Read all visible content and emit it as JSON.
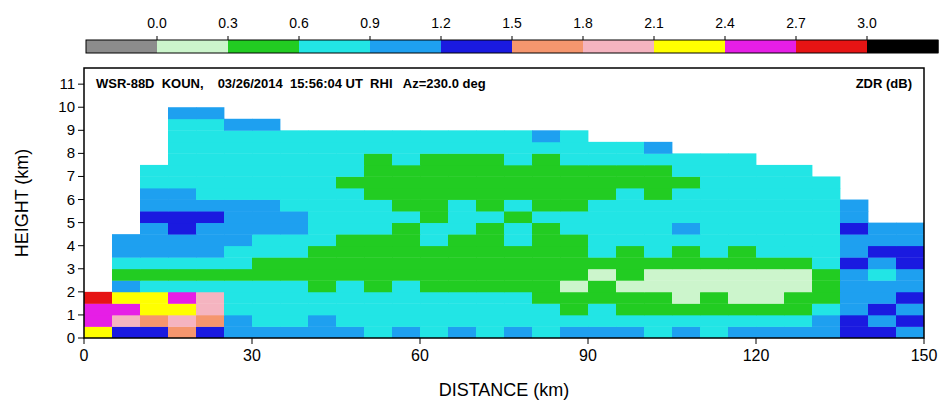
{
  "chart_data": {
    "type": "heatmap",
    "title": "WSR-88D  KOUN,",
    "subtitle": "03/26/2014  15:56:04 UT  RHI   Az=230.0 deg",
    "annotation": "ZDR (dB)",
    "x_label": "DISTANCE (km)",
    "y_label": "HEIGHT (km)",
    "xlim": [
      0,
      150
    ],
    "ylim": [
      0,
      11.7
    ],
    "xticks": [
      0,
      30,
      60,
      90,
      120,
      150
    ],
    "yticks": [
      0,
      1,
      2,
      3,
      4,
      5,
      6,
      7,
      8,
      9,
      10,
      11
    ],
    "grid": false,
    "xbins": [
      0,
      5,
      10,
      15,
      20,
      25,
      30,
      35,
      40,
      45,
      50,
      55,
      60,
      65,
      70,
      75,
      80,
      85,
      90,
      95,
      100,
      105,
      110,
      115,
      120,
      125,
      130,
      135,
      140,
      145,
      150
    ],
    "ybins": [
      0,
      0.5,
      1,
      1.5,
      2,
      2.5,
      3,
      3.5,
      4,
      4.5,
      5,
      5.5,
      6,
      6.5,
      7,
      7.5,
      8,
      8.5,
      9,
      9.5,
      10
    ],
    "cells": [
      [
        2.2,
        1.3,
        1.4,
        1.7,
        1.2,
        1.1,
        1.0,
        0.9,
        1.0,
        0.9,
        0.8,
        0.9,
        0.8,
        0.9,
        0.8,
        0.9,
        0.8,
        0.9,
        1.0,
        0.9,
        0.8,
        0.9,
        0.8,
        0.9,
        1.0,
        0.9,
        1.1,
        1.3,
        1.2,
        1.0
      ],
      [
        2.5,
        1.9,
        1.7,
        2.0,
        1.5,
        0.9,
        0.8,
        0.8,
        0.9,
        0.7,
        0.8,
        0.7,
        0.8,
        0.7,
        0.8,
        0.7,
        0.8,
        0.7,
        0.8,
        0.7,
        0.8,
        0.7,
        0.8,
        0.7,
        0.8,
        0.7,
        0.9,
        1.2,
        1.1,
        1.3
      ],
      [
        2.6,
        2.4,
        2.2,
        2.3,
        1.8,
        0.7,
        0.6,
        0.7,
        0.6,
        0.7,
        0.6,
        0.7,
        0.6,
        0.7,
        0.6,
        0.7,
        0.6,
        0.5,
        0.6,
        0.5,
        0.4,
        0.5,
        0.4,
        0.5,
        0.4,
        0.5,
        0.6,
        1.0,
        1.2,
        1.1
      ],
      [
        2.7,
        2.3,
        2.1,
        2.4,
        1.9,
        0.8,
        0.7,
        0.8,
        0.7,
        0.8,
        0.7,
        0.8,
        0.7,
        0.6,
        0.7,
        0.6,
        0.5,
        0.4,
        0.5,
        0.4,
        0.3,
        0.2,
        0.3,
        0.2,
        0.2,
        0.3,
        0.4,
        1.1,
        1.0,
        1.2
      ],
      [
        null,
        0.9,
        0.8,
        0.8,
        0.7,
        0.7,
        0.6,
        0.7,
        0.5,
        0.6,
        0.5,
        0.6,
        0.5,
        0.4,
        0.5,
        0.4,
        0.3,
        0.2,
        0.3,
        0.2,
        0.2,
        0.1,
        0.2,
        0.1,
        0.1,
        0.2,
        0.3,
        0.9,
        1.0,
        0.9
      ],
      [
        null,
        0.4,
        0.4,
        0.5,
        0.4,
        0.4,
        0.4,
        0.3,
        0.3,
        0.4,
        0.4,
        0.4,
        0.3,
        0.4,
        0.4,
        0.3,
        0.4,
        0.3,
        0.2,
        0.4,
        0.2,
        0.1,
        0.2,
        0.1,
        0.2,
        0.2,
        0.4,
        1.0,
        0.8,
        1.0
      ],
      [
        null,
        0.8,
        0.7,
        0.8,
        0.7,
        0.6,
        0.5,
        0.5,
        0.4,
        0.5,
        0.4,
        0.5,
        0.4,
        0.5,
        0.4,
        0.5,
        0.4,
        0.5,
        0.4,
        0.5,
        0.4,
        0.5,
        0.4,
        0.5,
        0.4,
        0.5,
        0.6,
        1.2,
        1.1,
        1.3
      ],
      [
        null,
        0.9,
        1.0,
        0.9,
        1.0,
        0.8,
        0.7,
        0.6,
        0.5,
        0.5,
        0.5,
        0.5,
        0.5,
        0.5,
        0.5,
        0.5,
        0.5,
        0.5,
        0.6,
        0.5,
        0.6,
        0.5,
        0.6,
        0.5,
        0.6,
        0.6,
        0.7,
        1.1,
        1.3,
        1.2
      ],
      [
        null,
        1.0,
        1.0,
        1.1,
        0.9,
        0.9,
        0.8,
        0.7,
        0.6,
        0.5,
        0.5,
        0.5,
        0.6,
        0.5,
        0.5,
        0.6,
        0.5,
        0.5,
        0.6,
        0.6,
        0.7,
        0.6,
        0.7,
        0.8,
        0.7,
        0.6,
        0.7,
        1.0,
        1.1,
        1.0
      ],
      [
        null,
        null,
        1.1,
        1.2,
        1.1,
        1.0,
        1.1,
        0.9,
        0.7,
        0.6,
        0.6,
        0.5,
        0.6,
        0.6,
        0.5,
        0.6,
        0.5,
        0.6,
        0.7,
        0.6,
        0.8,
        0.9,
        0.7,
        0.6,
        0.8,
        0.7,
        0.8,
        1.2,
        1.0,
        1.1
      ],
      [
        null,
        null,
        1.2,
        1.3,
        1.2,
        1.1,
        1.0,
        1.0,
        0.8,
        0.7,
        0.6,
        0.6,
        0.5,
        0.6,
        0.6,
        0.5,
        0.6,
        0.6,
        0.6,
        0.7,
        0.7,
        0.8,
        0.8,
        0.7,
        0.7,
        0.6,
        0.7,
        1.0,
        null,
        null
      ],
      [
        null,
        null,
        1.0,
        1.1,
        1.0,
        0.9,
        0.9,
        0.8,
        0.7,
        0.6,
        0.6,
        0.5,
        0.5,
        0.6,
        0.5,
        0.6,
        0.5,
        0.5,
        0.6,
        0.6,
        0.6,
        0.7,
        0.6,
        0.6,
        0.7,
        0.6,
        0.6,
        0.9,
        null,
        null
      ],
      [
        null,
        null,
        0.9,
        0.9,
        0.8,
        0.8,
        0.7,
        0.7,
        0.6,
        0.6,
        0.5,
        0.5,
        0.5,
        0.5,
        0.5,
        0.5,
        0.5,
        0.5,
        0.5,
        0.6,
        0.5,
        0.6,
        0.6,
        0.6,
        0.6,
        0.6,
        0.7,
        null,
        null,
        null
      ],
      [
        null,
        null,
        0.8,
        0.8,
        0.8,
        0.7,
        0.7,
        0.6,
        0.6,
        0.5,
        0.5,
        0.5,
        0.5,
        0.5,
        0.4,
        0.5,
        0.5,
        0.5,
        0.5,
        0.5,
        0.5,
        0.5,
        0.6,
        0.6,
        0.7,
        0.7,
        0.8,
        null,
        null,
        null
      ],
      [
        null,
        null,
        0.8,
        0.8,
        0.7,
        0.7,
        0.7,
        0.6,
        0.6,
        0.6,
        0.5,
        0.5,
        0.5,
        0.5,
        0.5,
        0.5,
        0.5,
        0.5,
        0.5,
        0.5,
        0.5,
        0.6,
        0.6,
        0.7,
        0.7,
        0.8,
        null,
        null,
        null,
        null
      ],
      [
        null,
        null,
        null,
        0.7,
        0.7,
        0.7,
        0.6,
        0.6,
        0.6,
        0.6,
        0.5,
        0.6,
        0.5,
        0.5,
        0.5,
        0.6,
        0.5,
        0.6,
        0.6,
        0.6,
        0.7,
        0.7,
        0.8,
        0.8,
        null,
        null,
        null,
        null,
        null,
        null
      ],
      [
        null,
        null,
        null,
        0.7,
        0.7,
        0.6,
        0.6,
        0.6,
        0.6,
        0.7,
        0.6,
        0.6,
        0.6,
        0.6,
        0.6,
        0.6,
        0.7,
        0.7,
        0.8,
        0.8,
        0.9,
        null,
        null,
        null,
        null,
        null,
        null,
        null,
        null,
        null
      ],
      [
        null,
        null,
        null,
        0.7,
        0.7,
        0.7,
        0.7,
        0.7,
        0.7,
        0.7,
        0.7,
        0.8,
        0.7,
        0.8,
        0.8,
        0.8,
        0.9,
        0.8,
        null,
        null,
        null,
        null,
        null,
        null,
        null,
        null,
        null,
        null,
        null,
        null
      ],
      [
        null,
        null,
        null,
        0.8,
        0.8,
        0.9,
        0.9,
        null,
        null,
        null,
        null,
        null,
        null,
        null,
        null,
        null,
        null,
        null,
        null,
        null,
        null,
        null,
        null,
        null,
        null,
        null,
        null,
        null,
        null,
        null
      ],
      [
        null,
        null,
        null,
        0.9,
        1.0,
        null,
        null,
        null,
        null,
        null,
        null,
        null,
        null,
        null,
        null,
        null,
        null,
        null,
        null,
        null,
        null,
        null,
        null,
        null,
        null,
        null,
        null,
        null,
        null,
        null
      ]
    ],
    "colorbar": {
      "range": [
        -0.3,
        3.3
      ],
      "ticks": [
        {
          "value": 0,
          "label": "0.0"
        },
        0.3,
        0.6,
        0.9,
        1.2,
        1.5,
        1.8,
        2.1,
        2.4,
        2.7,
        {
          "value": 3,
          "label": "3.0"
        }
      ],
      "colors": [
        "#8c8c8c",
        "#ccf5cc",
        "#22cc22",
        "#22e5e5",
        "#1ea0f0",
        "#1a1ae0",
        "#f5966e",
        "#f5b4c0",
        "#ffff00",
        "#e61ee6",
        "#e61414",
        "#000000"
      ]
    }
  }
}
